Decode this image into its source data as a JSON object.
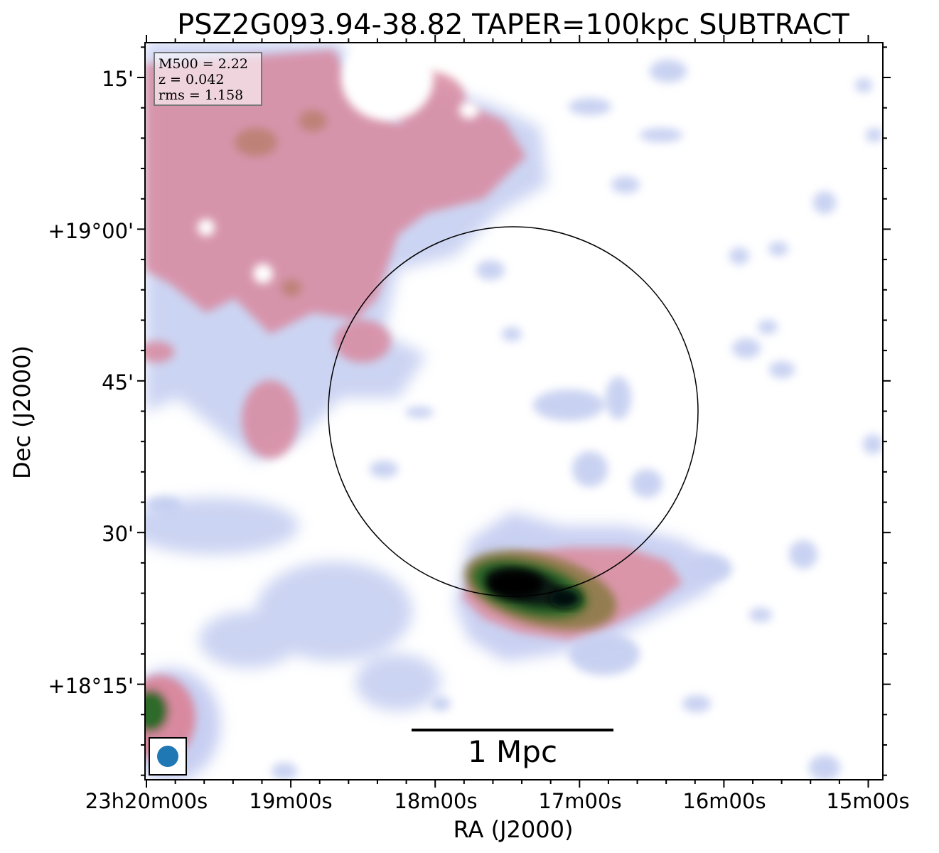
{
  "chart_data": {
    "type": "heatmap",
    "title": "PSZ2G093.94-38.82 TAPER=100kpc SUBTRACT",
    "xlabel": "RA (J2000)",
    "ylabel": "Dec (J2000)",
    "x_ticks": [
      "23h20m00s",
      "19m00s",
      "18m00s",
      "17m00s",
      "16m00s",
      "15m00s"
    ],
    "y_ticks": [
      "15'",
      "+19°00'",
      "45'",
      "30'",
      "+18°15'"
    ],
    "colormap": "cubehelix_r",
    "info_box": [
      "M500 = 2.22",
      "z = 0.042",
      "rms = 1.158"
    ],
    "scale_bar_label": "1 Mpc",
    "beam_color": "#1f77b4",
    "circle_color": "#000000",
    "grid": false
  }
}
